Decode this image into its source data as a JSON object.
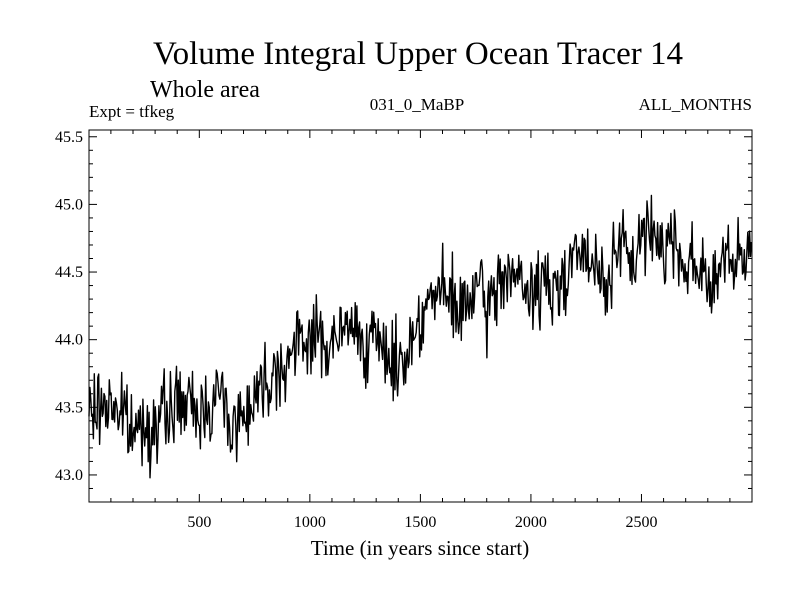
{
  "chart_data": {
    "type": "line",
    "title": "Volume Integral Upper Ocean Tracer 14",
    "subtitle": "Whole area",
    "annotations": {
      "left": "Expt = tfkeg",
      "center": "031_0_MaBP",
      "right": "ALL_MONTHS"
    },
    "xlabel": "Time (in years since start)",
    "ylabel": "",
    "xlim": [
      1,
      3000
    ],
    "ylim": [
      42.8,
      45.55
    ],
    "xticks": [
      500,
      1000,
      1500,
      2000,
      2500
    ],
    "yticks": [
      43.0,
      43.5,
      44.0,
      44.5,
      45.0,
      45.5
    ],
    "ytick_labels": [
      "43.0",
      "43.5",
      "44.0",
      "44.5",
      "45.0",
      "45.5"
    ],
    "grid": false,
    "series": [
      {
        "color": "#000000",
        "x": [
          1,
          50,
          100,
          150,
          200,
          250,
          300,
          350,
          400,
          450,
          500,
          550,
          600,
          650,
          700,
          750,
          800,
          850,
          900,
          950,
          1000,
          1050,
          1100,
          1150,
          1200,
          1250,
          1300,
          1350,
          1400,
          1450,
          1500,
          1550,
          1600,
          1650,
          1700,
          1750,
          1800,
          1850,
          1900,
          1950,
          2000,
          2050,
          2100,
          2150,
          2200,
          2250,
          2300,
          2350,
          2400,
          2450,
          2500,
          2550,
          2600,
          2650,
          2700,
          2750,
          2800,
          2850,
          2900,
          2950,
          3000
        ],
        "y": [
          43.45,
          43.5,
          43.55,
          43.45,
          43.3,
          43.4,
          43.35,
          43.45,
          43.55,
          43.5,
          43.45,
          43.55,
          43.6,
          43.35,
          43.45,
          43.6,
          43.7,
          43.8,
          43.85,
          43.95,
          44.05,
          44.0,
          43.95,
          44.05,
          44.1,
          44.0,
          43.95,
          43.9,
          43.8,
          43.95,
          44.2,
          44.3,
          44.35,
          44.25,
          44.2,
          44.4,
          44.2,
          44.4,
          44.55,
          44.4,
          44.3,
          44.45,
          44.3,
          44.5,
          44.7,
          44.55,
          44.5,
          44.45,
          44.7,
          44.55,
          44.75,
          44.8,
          44.7,
          44.75,
          44.55,
          44.6,
          44.4,
          44.5,
          44.6,
          44.5,
          44.7
        ]
      }
    ]
  }
}
